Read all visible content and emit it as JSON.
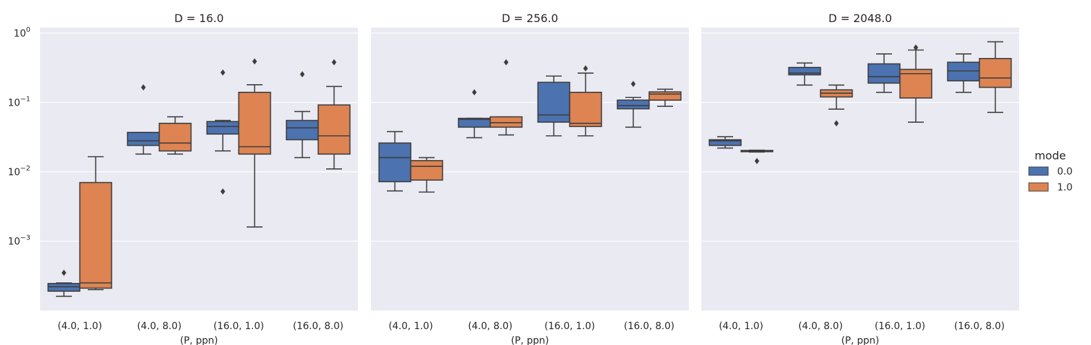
{
  "chart_data": {
    "type": "box",
    "y_scale": "log",
    "ylim": [
      0.0001,
      1.2
    ],
    "y_ticks": [
      {
        "value": 1,
        "base": "10",
        "exp": "0"
      },
      {
        "value": 0.1,
        "base": "10",
        "exp": "−1"
      },
      {
        "value": 0.01,
        "base": "10",
        "exp": "−2"
      },
      {
        "value": 0.001,
        "base": "10",
        "exp": "−3"
      }
    ],
    "grid": true,
    "xlabel": "(P, ppn)",
    "categories": [
      "(4.0, 1.0)",
      "(4.0, 8.0)",
      "(16.0, 1.0)",
      "(16.0, 8.0)"
    ],
    "legend": {
      "title": "mode",
      "placement": "right",
      "entries": [
        {
          "label": "0.0",
          "color": "#4c72b0"
        },
        {
          "label": "1.0",
          "color": "#dd8452"
        }
      ]
    },
    "panels": [
      {
        "title": "D = 16.0",
        "boxes": [
          [
            {
              "mode": "0.0",
              "min": 0.00016,
              "q1": 0.00019,
              "median": 0.00022,
              "q3": 0.000245,
              "max": 0.00025,
              "outliers": [
                0.00035
              ]
            },
            {
              "mode": "1.0",
              "min": 0.0002,
              "q1": 0.00021,
              "median": 0.00025,
              "q3": 0.007,
              "max": 0.0165,
              "outliers": []
            }
          ],
          [
            {
              "mode": "0.0",
              "min": 0.018,
              "q1": 0.024,
              "median": 0.028,
              "q3": 0.037,
              "max": 0.037,
              "outliers": [
                0.165
              ]
            },
            {
              "mode": "1.0",
              "min": 0.018,
              "q1": 0.02,
              "median": 0.026,
              "q3": 0.05,
              "max": 0.062,
              "outliers": []
            }
          ],
          [
            {
              "mode": "0.0",
              "min": 0.02,
              "q1": 0.035,
              "median": 0.045,
              "q3": 0.053,
              "max": 0.055,
              "outliers": [
                0.0052,
                0.27
              ]
            },
            {
              "mode": "1.0",
              "min": 0.0016,
              "q1": 0.018,
              "median": 0.023,
              "q3": 0.14,
              "max": 0.18,
              "outliers": [
                0.39
              ]
            }
          ],
          [
            {
              "mode": "0.0",
              "min": 0.016,
              "q1": 0.029,
              "median": 0.043,
              "q3": 0.055,
              "max": 0.074,
              "outliers": [
                0.255
              ]
            },
            {
              "mode": "1.0",
              "min": 0.011,
              "q1": 0.018,
              "median": 0.033,
              "q3": 0.092,
              "max": 0.17,
              "outliers": [
                0.38
              ]
            }
          ]
        ]
      },
      {
        "title": "D = 256.0",
        "boxes": [
          [
            {
              "mode": "0.0",
              "min": 0.0053,
              "q1": 0.0072,
              "median": 0.016,
              "q3": 0.026,
              "max": 0.038,
              "outliers": []
            },
            {
              "mode": "1.0",
              "min": 0.0051,
              "q1": 0.0076,
              "median": 0.012,
              "q3": 0.0145,
              "max": 0.016,
              "outliers": []
            }
          ],
          [
            {
              "mode": "0.0",
              "min": 0.031,
              "q1": 0.044,
              "median": 0.057,
              "q3": 0.059,
              "max": 0.059,
              "outliers": [
                0.14
              ]
            },
            {
              "mode": "1.0",
              "min": 0.034,
              "q1": 0.044,
              "median": 0.051,
              "q3": 0.062,
              "max": 0.062,
              "outliers": [
                0.38
              ]
            }
          ],
          [
            {
              "mode": "0.0",
              "min": 0.033,
              "q1": 0.052,
              "median": 0.066,
              "q3": 0.195,
              "max": 0.24,
              "outliers": []
            },
            {
              "mode": "1.0",
              "min": 0.033,
              "q1": 0.045,
              "median": 0.05,
              "q3": 0.14,
              "max": 0.265,
              "outliers": [
                0.31
              ]
            }
          ],
          [
            {
              "mode": "0.0",
              "min": 0.044,
              "q1": 0.081,
              "median": 0.09,
              "q3": 0.108,
              "max": 0.118,
              "outliers": [
                0.185
              ]
            },
            {
              "mode": "1.0",
              "min": 0.088,
              "q1": 0.108,
              "median": 0.132,
              "q3": 0.142,
              "max": 0.155,
              "outliers": []
            }
          ]
        ]
      },
      {
        "title": "D = 2048.0",
        "boxes": [
          [
            {
              "mode": "0.0",
              "min": 0.022,
              "q1": 0.024,
              "median": 0.028,
              "q3": 0.029,
              "max": 0.032,
              "outliers": []
            },
            {
              "mode": "1.0",
              "min": 0.0193,
              "q1": 0.0195,
              "median": 0.0198,
              "q3": 0.0203,
              "max": 0.0205,
              "outliers": [
                0.0143
              ]
            }
          ],
          [
            {
              "mode": "0.0",
              "min": 0.178,
              "q1": 0.25,
              "median": 0.265,
              "q3": 0.32,
              "max": 0.37,
              "outliers": []
            },
            {
              "mode": "1.0",
              "min": 0.08,
              "q1": 0.12,
              "median": 0.136,
              "q3": 0.152,
              "max": 0.178,
              "outliers": [
                0.05
              ]
            }
          ],
          [
            {
              "mode": "0.0",
              "min": 0.14,
              "q1": 0.19,
              "median": 0.235,
              "q3": 0.36,
              "max": 0.5,
              "outliers": []
            },
            {
              "mode": "1.0",
              "min": 0.052,
              "q1": 0.116,
              "median": 0.26,
              "q3": 0.3,
              "max": 0.57,
              "outliers": [
                0.62
              ]
            }
          ],
          [
            {
              "mode": "0.0",
              "min": 0.14,
              "q1": 0.205,
              "median": 0.285,
              "q3": 0.38,
              "max": 0.5,
              "outliers": []
            },
            {
              "mode": "1.0",
              "min": 0.072,
              "q1": 0.165,
              "median": 0.225,
              "q3": 0.43,
              "max": 0.75,
              "outliers": []
            }
          ]
        ]
      }
    ]
  }
}
